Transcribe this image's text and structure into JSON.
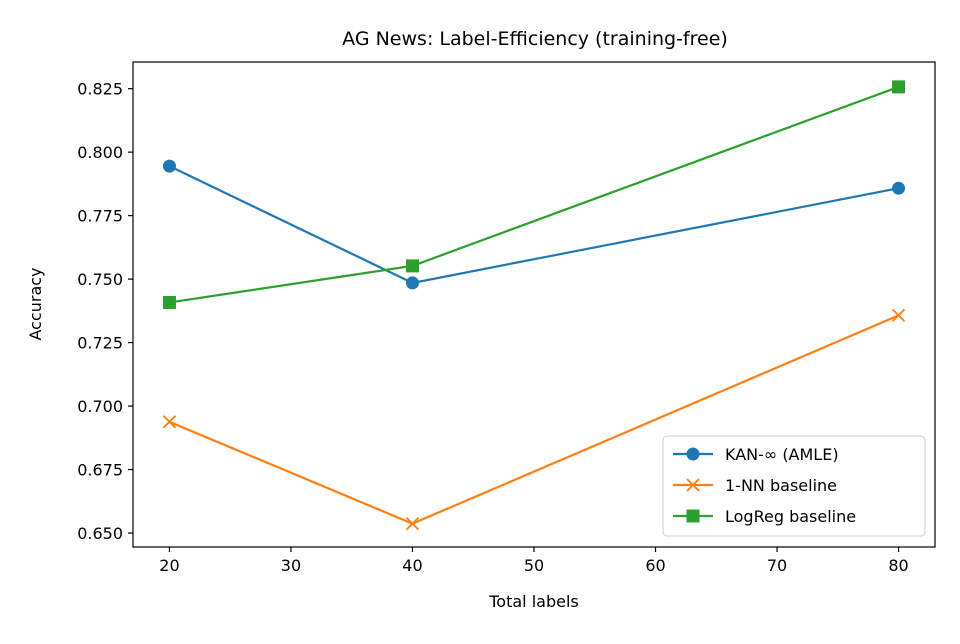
{
  "chart_data": {
    "type": "line",
    "title": "AG News: Label-Efficiency (training-free)",
    "xlabel": "Total labels",
    "ylabel": "Accuracy",
    "x": [
      20,
      40,
      80
    ],
    "xlim": [
      17,
      83
    ],
    "ylim": [
      0.6445,
      0.8355
    ],
    "xticks": [
      20,
      30,
      40,
      50,
      60,
      70,
      80
    ],
    "yticks": [
      0.65,
      0.675,
      0.7,
      0.725,
      0.75,
      0.775,
      0.8,
      0.825
    ],
    "xtick_labels": [
      "20",
      "30",
      "40",
      "50",
      "60",
      "70",
      "80"
    ],
    "ytick_labels": [
      "0.650",
      "0.675",
      "0.700",
      "0.725",
      "0.750",
      "0.775",
      "0.800",
      "0.825"
    ],
    "grid": false,
    "legend_position": "lower-right",
    "series": [
      {
        "name": "KAN-∞ (AMLE)",
        "values": [
          0.7945,
          0.7485,
          0.7858
        ],
        "color": "#1f77b4",
        "marker": "circle"
      },
      {
        "name": "1-NN baseline",
        "values": [
          0.6938,
          0.6537,
          0.7357
        ],
        "color": "#ff7f0e",
        "marker": "x"
      },
      {
        "name": "LogReg baseline",
        "values": [
          0.7408,
          0.7552,
          0.8257
        ],
        "color": "#2ca02c",
        "marker": "square"
      }
    ]
  }
}
